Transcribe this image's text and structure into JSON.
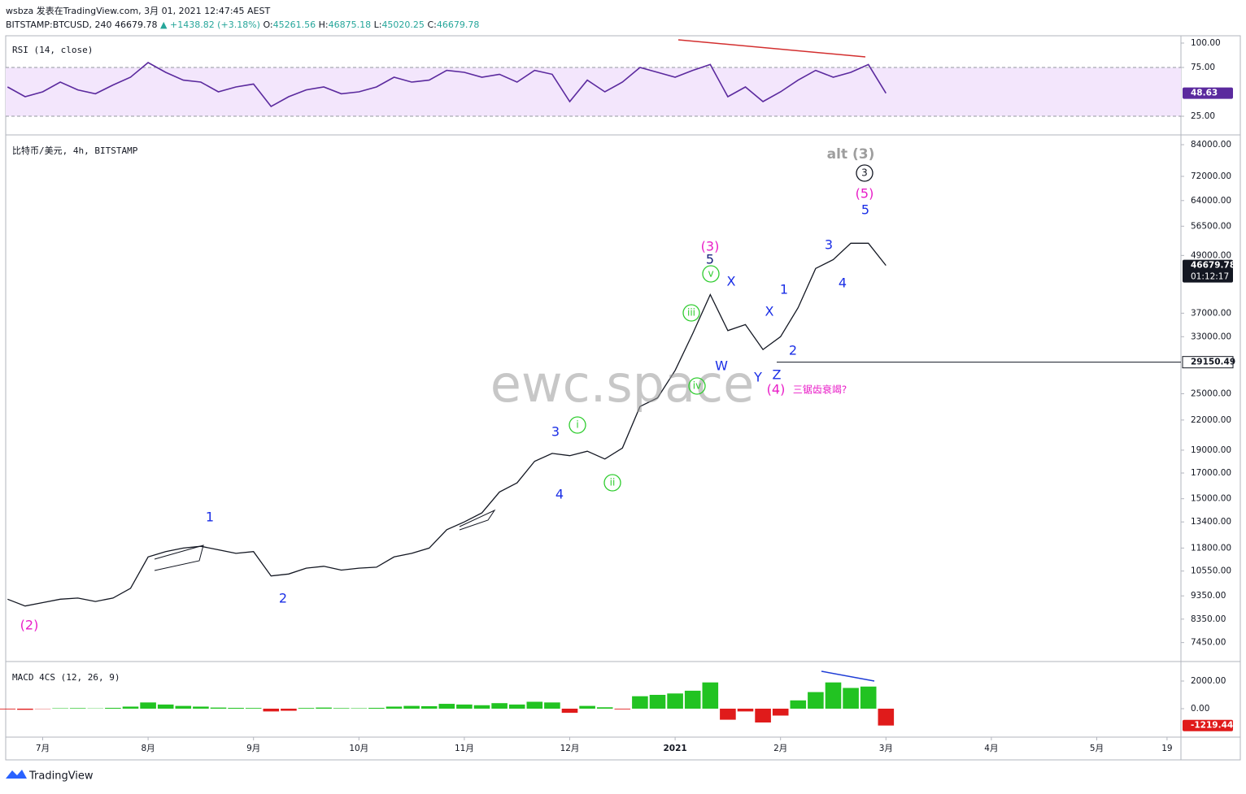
{
  "header": {
    "line1": "wsbza 发表在TradingView.com, 3月 01, 2021 12:47:45 AEST",
    "symbol": "BITSTAMP:BTCUSD, 240",
    "last": "46679.78",
    "arrow": "▲",
    "change": "+1438.82 (+3.18%)",
    "o_label": "O:",
    "o": "45261.56",
    "h_label": "H:",
    "h": "46875.18",
    "l_label": "L:",
    "l": "45020.25",
    "c_label": "C:",
    "c": "46679.78"
  },
  "chart_data": [
    {
      "type": "line",
      "title": "比特币/美元, 4h, BITSTAMP",
      "log_scale": true,
      "color": "#131722",
      "categories": [
        null,
        null,
        "7月",
        null,
        null,
        null,
        null,
        null,
        "8月",
        null,
        null,
        null,
        null,
        null,
        "9月",
        null,
        null,
        null,
        null,
        null,
        "10月",
        null,
        null,
        null,
        null,
        null,
        "11月",
        null,
        null,
        null,
        null,
        null,
        "12月",
        null,
        null,
        null,
        null,
        null,
        "2021",
        null,
        null,
        null,
        null,
        null,
        "2月",
        null,
        null,
        null,
        null,
        null,
        "3月",
        null,
        null,
        null,
        null,
        null,
        "4月",
        null,
        null,
        null,
        null,
        null,
        "5月",
        null,
        null,
        null,
        "19"
      ],
      "values": [
        9200,
        8900,
        9050,
        9200,
        9250,
        9100,
        9250,
        9700,
        11300,
        11600,
        11800,
        11900,
        11700,
        11500,
        11600,
        10300,
        10400,
        10700,
        10800,
        10600,
        10700,
        10750,
        11300,
        11500,
        11800,
        12900,
        13400,
        14000,
        15500,
        16200,
        18000,
        18700,
        18500,
        18900,
        18200,
        19200,
        23500,
        24500,
        28000,
        33500,
        40500,
        34000,
        35000,
        31000,
        33000,
        38000,
        46000,
        48000,
        52000,
        52000,
        46679.78,
        null,
        null,
        null,
        null,
        null,
        null,
        null,
        null,
        null,
        null,
        null,
        null,
        null,
        null,
        null,
        null
      ],
      "ylim": [
        6820,
        87400
      ],
      "yticks": [
        {
          "value": 84000,
          "label": "84000.00"
        },
        {
          "value": 72000,
          "label": "72000.00"
        },
        {
          "value": 64000,
          "label": "64000.00"
        },
        {
          "value": 56500,
          "label": "56500.00"
        },
        {
          "value": 49000,
          "label": "49000.00"
        },
        {
          "value": 37000,
          "label": "37000.00"
        },
        {
          "value": 33000,
          "label": "33000.00"
        },
        {
          "value": 25000,
          "label": "25000.00"
        },
        {
          "value": 22000,
          "label": "22000.00"
        },
        {
          "value": 19000,
          "label": "19000.00"
        },
        {
          "value": 17000,
          "label": "17000.00"
        },
        {
          "value": 15000,
          "label": "15000.00"
        },
        {
          "value": 13400,
          "label": "13400.00"
        },
        {
          "value": 11800,
          "label": "11800.00"
        },
        {
          "value": 10550,
          "label": "10550.00"
        },
        {
          "value": 9350,
          "label": "9350.00"
        },
        {
          "value": 8350,
          "label": "8350.00"
        },
        {
          "value": 7450,
          "label": "7450.00"
        }
      ],
      "last_label": "46679.78",
      "countdown": "01:12:17",
      "hline": {
        "value": 29150.49,
        "label": "29150.49"
      },
      "watermark": "ewc.space",
      "annotations": [
        "(2)",
        "1",
        "2",
        "3",
        "4",
        "i",
        "ii",
        "iii",
        "iv",
        "v",
        "5",
        "(3)",
        "X",
        "W",
        "X",
        "Y",
        "1",
        "2",
        "Z",
        "(4)",
        "三锯齿衰竭?",
        "3",
        "4",
        "5",
        "(5)",
        "3",
        "alt (3)"
      ]
    },
    {
      "type": "line",
      "title": "RSI (14, close)",
      "color": "#5b2a9e",
      "band": [
        25,
        75
      ],
      "values": [
        55,
        45,
        50,
        60,
        52,
        48,
        57,
        65,
        80,
        70,
        62,
        60,
        50,
        55,
        58,
        35,
        45,
        52,
        55,
        48,
        50,
        55,
        65,
        60,
        62,
        72,
        70,
        65,
        68,
        60,
        72,
        68,
        40,
        62,
        50,
        60,
        75,
        70,
        65,
        72,
        78,
        45,
        55,
        40,
        50,
        62,
        72,
        65,
        70,
        78,
        48.63,
        null,
        null,
        null,
        null,
        null,
        null,
        null,
        null,
        null,
        null,
        null,
        null,
        null,
        null,
        null,
        null
      ],
      "ylim": [
        6.7,
        107.5
      ],
      "yticks": [
        {
          "value": 100,
          "label": "100.00"
        },
        {
          "value": 75,
          "label": "75.00"
        },
        {
          "value": 25,
          "label": "25.00"
        }
      ],
      "last_label": "48.63"
    },
    {
      "type": "histogram",
      "title": "MACD 4CS (12, 26, 9)",
      "colors": [
        "#22c322",
        "#e01b1b"
      ],
      "values": [
        -50,
        -80,
        -20,
        30,
        40,
        20,
        60,
        150,
        450,
        300,
        200,
        150,
        80,
        60,
        50,
        -200,
        -150,
        50,
        80,
        40,
        30,
        60,
        150,
        200,
        180,
        350,
        300,
        250,
        400,
        300,
        500,
        450,
        -300,
        200,
        100,
        -50,
        900,
        1000,
        1100,
        1300,
        1900,
        -800,
        -200,
        -1000,
        -500,
        600,
        1200,
        1900,
        1500,
        1600,
        -1219.44,
        null,
        null,
        null,
        null,
        null,
        null,
        null,
        null,
        null,
        null,
        null,
        null,
        null,
        null,
        null,
        null
      ],
      "ylim": [
        -2059,
        3353
      ],
      "yticks": [
        {
          "value": 2000,
          "label": "2000.00"
        },
        {
          "value": 0,
          "label": "0.00"
        }
      ],
      "last_label": "-1219.44"
    }
  ],
  "footer": {
    "logo": "TradingView"
  }
}
